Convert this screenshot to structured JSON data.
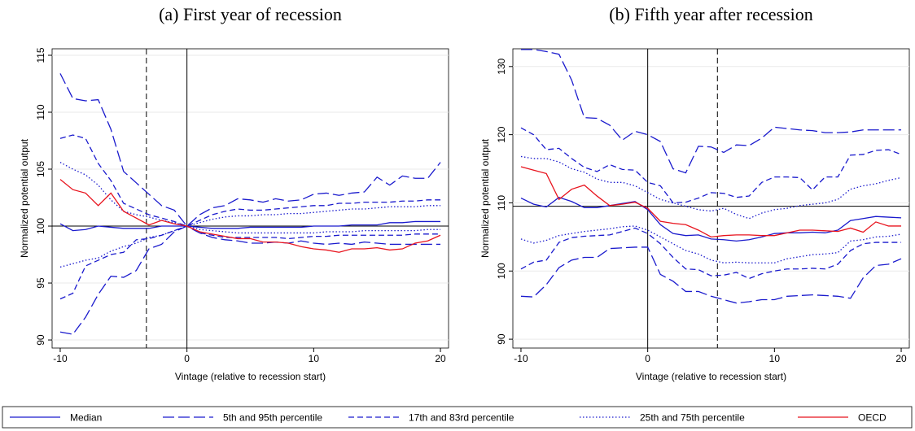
{
  "chart_data": [
    {
      "type": "line",
      "title": "(a) First year of recession",
      "x_label": "Vintage (relative to recession start)",
      "y_label": "Normalized potential output",
      "x": [
        -10,
        -9,
        -8,
        -7,
        -6,
        -5,
        -4,
        -3,
        -2,
        -1,
        0,
        1,
        2,
        3,
        4,
        5,
        6,
        7,
        8,
        9,
        10,
        11,
        12,
        13,
        14,
        15,
        16,
        17,
        18,
        19,
        20
      ],
      "xlim": [
        -10.64,
        20.64
      ],
      "xticks": [
        -10,
        0,
        10,
        20
      ],
      "ylim": [
        89.29,
        115.57
      ],
      "yticks": [
        90,
        95,
        100,
        105,
        110,
        115
      ],
      "grid": true,
      "hline": 100,
      "vlines": [
        {
          "x": -3.2,
          "dash": "dash"
        },
        {
          "x": 0,
          "dash": "solid"
        }
      ],
      "series": [
        {
          "name": "Median",
          "color": "#1a1acd",
          "dash": "solid",
          "values": [
            100.2,
            99.6,
            99.7,
            100,
            99.9,
            99.8,
            99.8,
            99.8,
            100,
            100,
            100,
            99.9,
            99.8,
            99.8,
            99.8,
            99.9,
            99.9,
            99.9,
            99.9,
            99.9,
            100,
            100,
            100,
            100.1,
            100.1,
            100.1,
            100.3,
            100.3,
            100.4,
            100.4,
            100.4
          ]
        },
        {
          "name": "5th and 95th percentile",
          "color": "#1a1acd",
          "dash": "longdash",
          "values": [
            113.4,
            111.2,
            111,
            111.1,
            108.5,
            104.8,
            103.8,
            102.8,
            101.8,
            101.4,
            100,
            101,
            101.6,
            101.8,
            102.4,
            102.3,
            102.1,
            102.4,
            102.2,
            102.3,
            102.8,
            102.9,
            102.7,
            102.9,
            103,
            104.3,
            103.6,
            104.4,
            104.2,
            104.2,
            105.6
          ]
        },
        {
          "name": "5th and 95th percentile",
          "color": "#1a1acd",
          "dash": "longdash",
          "values": [
            90.7,
            90.5,
            92,
            94,
            95.6,
            95.5,
            96.1,
            98,
            98.4,
            99.5,
            100,
            99.4,
            99,
            98.8,
            98.7,
            98.5,
            98.5,
            98.6,
            98.5,
            98.7,
            98.5,
            98.4,
            98.5,
            98.4,
            98.6,
            98.5,
            98.4,
            98.4,
            98.4,
            98.4,
            98.4
          ]
        },
        {
          "name": "17th and 83rd percentile",
          "color": "#1a1acd",
          "dash": "dash",
          "values": [
            107.7,
            108,
            107.7,
            105.5,
            104,
            102,
            101.5,
            101,
            100.7,
            100.4,
            100,
            100.5,
            101,
            101.3,
            101.5,
            101.4,
            101.4,
            101.5,
            101.6,
            101.7,
            101.8,
            101.8,
            102,
            102,
            102.1,
            102.1,
            102.1,
            102.2,
            102.2,
            102.3,
            102.3
          ]
        },
        {
          "name": "17th and 83rd percentile",
          "color": "#1a1acd",
          "dash": "dash",
          "values": [
            93.6,
            94.1,
            96.5,
            97,
            97.5,
            97.7,
            98.8,
            98.9,
            99.2,
            99.6,
            100,
            99.4,
            99.2,
            99,
            99,
            99,
            99,
            99,
            98.9,
            99,
            99.1,
            99.1,
            99.2,
            99.2,
            99.2,
            99.2,
            99.2,
            99.2,
            99.3,
            99.3,
            99.3
          ]
        },
        {
          "name": "25th and 75th percentile",
          "color": "#1a1acd",
          "dash": "dot",
          "values": [
            105.6,
            105,
            104.5,
            103.6,
            102.3,
            101.3,
            101,
            100.8,
            100.5,
            100.3,
            100,
            100.3,
            100.6,
            100.8,
            100.9,
            100.9,
            101,
            101,
            101.1,
            101.1,
            101.2,
            101.3,
            101.4,
            101.5,
            101.5,
            101.6,
            101.7,
            101.7,
            101.7,
            101.8,
            101.8
          ]
        },
        {
          "name": "25th and 75th percentile",
          "color": "#1a1acd",
          "dash": "dot",
          "values": [
            96.4,
            96.7,
            97,
            97.2,
            97.8,
            98.2,
            98.5,
            99,
            99.2,
            99.6,
            100,
            99.7,
            99.6,
            99.5,
            99.4,
            99.4,
            99.4,
            99.4,
            99.4,
            99.4,
            99.4,
            99.5,
            99.5,
            99.5,
            99.6,
            99.6,
            99.6,
            99.6,
            99.6,
            99.7,
            99.7
          ]
        },
        {
          "name": "OECD",
          "color": "#e8141e",
          "dash": "solid",
          "values": [
            104.1,
            103.2,
            102.9,
            101.8,
            102.9,
            101.3,
            100.7,
            100.1,
            100.5,
            100.2,
            100,
            99.5,
            99.3,
            99.1,
            98.9,
            98.9,
            98.6,
            98.6,
            98.5,
            98.2,
            98,
            97.9,
            97.7,
            98,
            98,
            98.1,
            97.9,
            98,
            98.5,
            98.7,
            99.2
          ]
        }
      ]
    },
    {
      "type": "line",
      "title": "(b) Fifth year after recession",
      "x_label": "Vintage (relative to recession start)",
      "y_label": "Normalized potential output",
      "x": [
        -10,
        -9,
        -8,
        -7,
        -6,
        -5,
        -4,
        -3,
        -2,
        -1,
        0,
        1,
        2,
        3,
        4,
        5,
        6,
        7,
        8,
        9,
        10,
        11,
        12,
        13,
        14,
        15,
        16,
        17,
        18,
        19,
        20
      ],
      "xlim": [
        -10.64,
        20.64
      ],
      "xticks": [
        -10,
        0,
        10,
        20
      ],
      "ylim": [
        88.7,
        132.6
      ],
      "yticks": [
        90,
        100,
        110,
        120,
        130
      ],
      "grid": true,
      "hline": 109.5,
      "vlines": [
        {
          "x": 0,
          "dash": "solid"
        },
        {
          "x": 5.5,
          "dash": "dash"
        }
      ],
      "series": [
        {
          "name": "Median",
          "color": "#1a1acd",
          "dash": "solid",
          "values": [
            110.7,
            109.8,
            109.4,
            110.8,
            110.2,
            109.3,
            109.3,
            109.6,
            109.9,
            110.2,
            109,
            106.8,
            105.5,
            105.2,
            105.3,
            104.7,
            104.6,
            104.4,
            104.6,
            105,
            105.5,
            105.6,
            105.6,
            105.7,
            105.6,
            106,
            107.4,
            107.7,
            108,
            107.9,
            107.8
          ]
        },
        {
          "name": "5th and 95th percentile",
          "color": "#1a1acd",
          "dash": "longdash",
          "values": [
            132.5,
            132.5,
            132.2,
            131.8,
            128,
            122.5,
            122.4,
            121.4,
            119.2,
            120.5,
            120,
            119,
            115,
            114.4,
            118.3,
            118.2,
            117.4,
            118.5,
            118.4,
            119.5,
            121.1,
            120.9,
            120.7,
            120.6,
            120.3,
            120.3,
            120.4,
            120.7,
            120.7,
            120.7,
            120.7
          ]
        },
        {
          "name": "5th and 95th percentile",
          "color": "#1a1acd",
          "dash": "longdash",
          "values": [
            96.3,
            96.2,
            98,
            100.5,
            101.6,
            102,
            102,
            103.3,
            103.4,
            103.5,
            103.5,
            99.5,
            98.5,
            97,
            97,
            96.3,
            95.8,
            95.3,
            95.5,
            95.8,
            95.8,
            96.3,
            96.4,
            96.5,
            96.4,
            96.3,
            96,
            99,
            100.8,
            101,
            101.8
          ]
        },
        {
          "name": "17th and 83rd percentile",
          "color": "#1a1acd",
          "dash": "dash",
          "values": [
            121,
            120,
            117.8,
            118,
            116.5,
            115.2,
            114.6,
            115.6,
            114.9,
            114.8,
            113,
            112.5,
            110,
            110.1,
            110.7,
            111.5,
            111.4,
            110.8,
            111,
            113,
            113.8,
            113.8,
            113.7,
            111.9,
            113.8,
            113.8,
            117,
            117.1,
            117.7,
            117.8,
            117.1
          ]
        },
        {
          "name": "17th and 83rd percentile",
          "color": "#1a1acd",
          "dash": "dash",
          "values": [
            100.3,
            101.3,
            101.6,
            104.2,
            104.9,
            105.1,
            105.2,
            105.3,
            105.8,
            106.3,
            105.5,
            104,
            102,
            100.3,
            100.2,
            99.3,
            99.4,
            99.8,
            98.9,
            99.6,
            100,
            100.3,
            100.3,
            100.4,
            100.3,
            101,
            103,
            104,
            104.2,
            104.2,
            104.2
          ]
        },
        {
          "name": "25th and 75th percentile",
          "color": "#1a1acd",
          "dash": "dot",
          "values": [
            116.8,
            116.5,
            116.5,
            116,
            115,
            114.5,
            113.5,
            113,
            113,
            112.5,
            111.5,
            110.5,
            110,
            109.5,
            109,
            108.8,
            109.2,
            108.3,
            107.7,
            108.5,
            109,
            109.2,
            109.6,
            109.8,
            110,
            110.5,
            112,
            112.5,
            112.8,
            113.3,
            113.7
          ]
        },
        {
          "name": "25th and 75th percentile",
          "color": "#1a1acd",
          "dash": "dot",
          "values": [
            104.7,
            104.1,
            104.5,
            105.2,
            105.5,
            105.8,
            106,
            106.2,
            106.5,
            106.6,
            106,
            105,
            104,
            103,
            102.5,
            101.6,
            101.2,
            101.3,
            101.2,
            101.2,
            101.2,
            101.8,
            102.1,
            102.4,
            102.5,
            102.7,
            104.4,
            104.6,
            105,
            105.1,
            105.4
          ]
        },
        {
          "name": "OECD",
          "color": "#e8141e",
          "dash": "solid",
          "values": [
            115.3,
            114.8,
            114.3,
            110.5,
            112,
            112.6,
            111,
            109.6,
            109.8,
            110.1,
            109.2,
            107.3,
            107,
            106.8,
            106,
            105,
            105.2,
            105.3,
            105.3,
            105.2,
            105.2,
            105.6,
            106,
            106,
            105.9,
            105.8,
            106.3,
            105.7,
            107.2,
            106.6,
            106.6
          ]
        }
      ]
    }
  ]
}
